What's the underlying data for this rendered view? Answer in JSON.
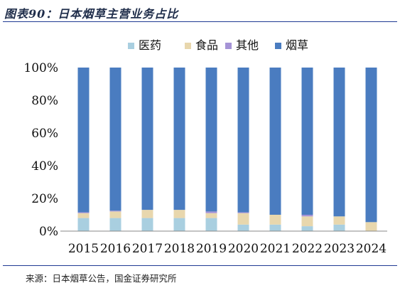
{
  "header": {
    "title": "图表90：日本烟草主营业务占比"
  },
  "footer": {
    "source": "来源：日本烟草公告，国金证券研究所"
  },
  "chart_data": {
    "type": "bar",
    "stacked": true,
    "categories": [
      "2015",
      "2016",
      "2017",
      "2018",
      "2019",
      "2020",
      "2021",
      "2022",
      "2023",
      "2024"
    ],
    "series": [
      {
        "name": "医药",
        "color": "#a9cfe0",
        "values": [
          8,
          8,
          8,
          8,
          8,
          4,
          4,
          3,
          4,
          0
        ]
      },
      {
        "name": "食品",
        "color": "#e8d7ad",
        "values": [
          3,
          4,
          5,
          5,
          3,
          7,
          6,
          6,
          5,
          5.5
        ]
      },
      {
        "name": "其他",
        "color": "#a593d6",
        "values": [
          0.5,
          0.5,
          0,
          0,
          1,
          0.5,
          0,
          1,
          0,
          0
        ]
      },
      {
        "name": "烟草",
        "color": "#4a7cc0",
        "values": [
          88.5,
          87.5,
          87,
          87,
          88,
          88.5,
          90,
          90,
          91,
          94.5
        ]
      }
    ],
    "yticks": [
      "0%",
      "20%",
      "40%",
      "60%",
      "80%",
      "100%"
    ],
    "ylim": [
      0,
      100
    ],
    "legend_position": "top",
    "grid": false
  }
}
